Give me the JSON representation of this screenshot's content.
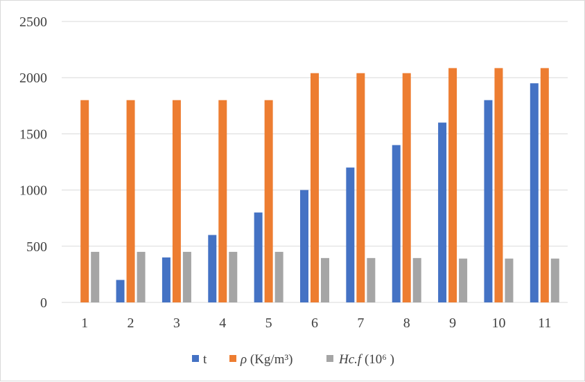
{
  "chart_data": {
    "type": "bar",
    "categories": [
      "1",
      "2",
      "3",
      "4",
      "5",
      "6",
      "7",
      "8",
      "9",
      "10",
      "11"
    ],
    "series": [
      {
        "name": "t",
        "color": "#4472c4",
        "values": [
          0,
          200,
          400,
          600,
          800,
          1000,
          1200,
          1400,
          1600,
          1800,
          1950
        ]
      },
      {
        "name": "ρ (Kg/m³)",
        "color": "#ed7d31",
        "values": [
          1800,
          1800,
          1800,
          1800,
          1800,
          2040,
          2040,
          2040,
          2085,
          2085,
          2085
        ]
      },
      {
        "name": "Hc.f (10⁶ )",
        "color": "#a5a5a5",
        "values": [
          450,
          450,
          450,
          450,
          450,
          395,
          395,
          395,
          390,
          390,
          390
        ]
      }
    ],
    "y_ticks": [
      "0",
      "500",
      "1000",
      "1500",
      "2000",
      "2500"
    ],
    "ylim": [
      0,
      2500
    ],
    "grid": true,
    "legend_position": "bottom",
    "gridline_color": "#d9d9d9",
    "title": "",
    "xlabel": "",
    "ylabel": ""
  },
  "legend": {
    "t_label": "t",
    "rho_symbol": "ρ",
    "rho_units": " (Kg/m³)",
    "hcf_symbol": "Hc.f",
    "hcf_units": " (10⁶ )"
  }
}
